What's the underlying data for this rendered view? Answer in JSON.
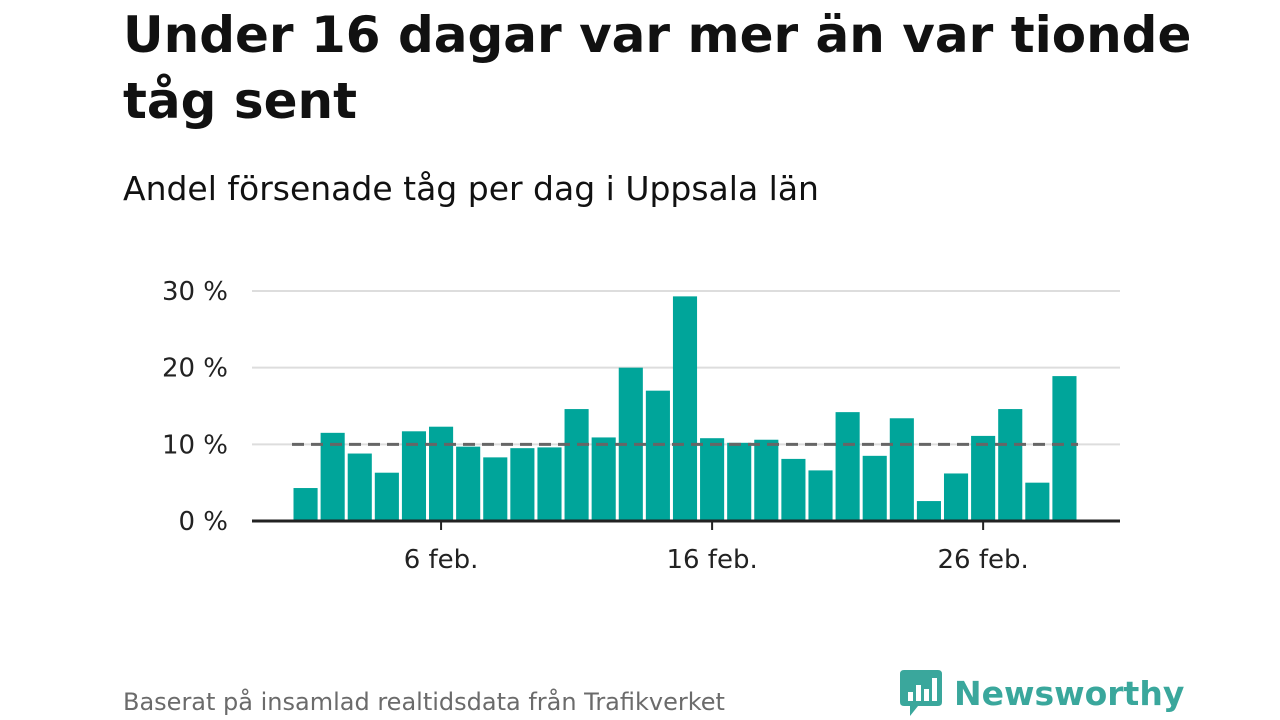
{
  "title": "Under 16 dagar var mer än var tionde tåg sent",
  "subtitle": "Andel försenade tåg per dag i Uppsala län",
  "source": "Baserat på insamlad realtidsdata från Trafikverket",
  "logo": {
    "name": "Newsworthy",
    "icon": "newsworthy-logo-icon",
    "color": "#3aa79c"
  },
  "colors": {
    "bar": "#00a59a",
    "reference_line": "#666666",
    "grid": "#dddddd",
    "axis": "#222222"
  },
  "chart_data": {
    "type": "bar",
    "x": [
      "1 feb.",
      "2 feb.",
      "3 feb.",
      "4 feb.",
      "5 feb.",
      "6 feb.",
      "7 feb.",
      "8 feb.",
      "9 feb.",
      "10 feb.",
      "11 feb.",
      "12 feb.",
      "13 feb.",
      "14 feb.",
      "15 feb.",
      "16 feb.",
      "17 feb.",
      "18 feb.",
      "19 feb.",
      "20 feb.",
      "21 feb.",
      "22 feb.",
      "23 feb.",
      "24 feb.",
      "25 feb.",
      "26 feb.",
      "27 feb.",
      "28 feb.",
      "29 feb."
    ],
    "values": [
      4.3,
      11.5,
      8.8,
      6.3,
      11.7,
      12.3,
      9.7,
      8.3,
      9.5,
      9.6,
      14.6,
      10.9,
      20.0,
      17.0,
      29.3,
      10.8,
      10.2,
      10.6,
      8.1,
      6.6,
      14.2,
      8.5,
      13.4,
      2.6,
      6.2,
      11.1,
      14.6,
      5.0,
      18.9
    ],
    "reference_line": 10,
    "x_tick_labels": [
      "6 feb.",
      "16 feb.",
      "26 feb."
    ],
    "y_tick_labels": [
      "0 %",
      "10 %",
      "20 %",
      "30 %"
    ],
    "y_ticks": [
      0,
      10,
      20,
      30
    ],
    "ylim": [
      0,
      30
    ],
    "grid": true,
    "legend": "none"
  }
}
